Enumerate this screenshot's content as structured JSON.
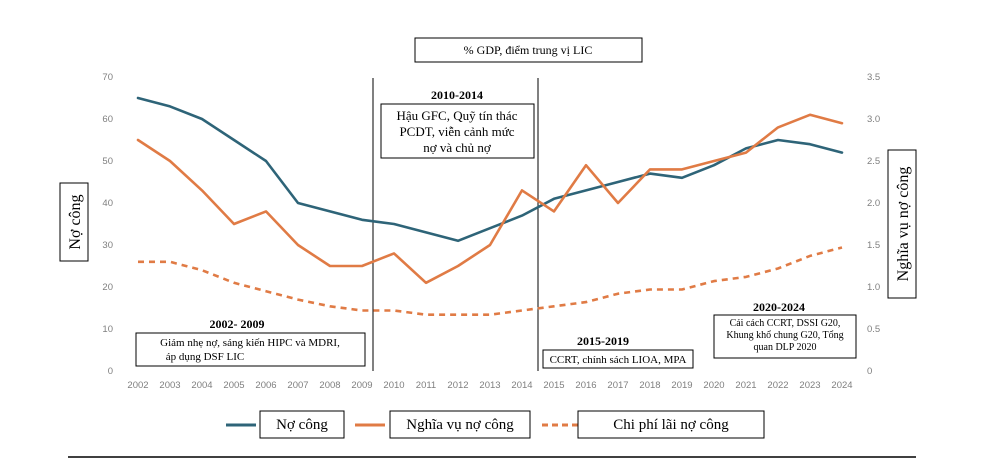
{
  "chart_data": {
    "type": "line",
    "title": "% GDP, điểm trung vị LIC",
    "ylabel": "Nợ công",
    "y2label": "Nghĩa vụ nợ công",
    "xlabel": "",
    "ylim": [
      0,
      70
    ],
    "y2lim": [
      0,
      3.5
    ],
    "grid": false,
    "categories": [
      "2002",
      "2003",
      "2004",
      "2005",
      "2006",
      "2007",
      "2008",
      "2009",
      "2010",
      "2011",
      "2012",
      "2013",
      "2014",
      "2015",
      "2016",
      "2017",
      "2018",
      "2019",
      "2020",
      "2021",
      "2022",
      "2023",
      "2024"
    ],
    "yticks": [
      "0",
      "10",
      "20",
      "30",
      "40",
      "50",
      "60",
      "70"
    ],
    "y2ticks": [
      "0",
      "0.5",
      "1.0",
      "1.5",
      "2.0",
      "2.5",
      "3.0",
      "3.5"
    ],
    "series": [
      {
        "name": "Nợ công",
        "axis": "left",
        "style": "solid",
        "color": "#2e6478",
        "values": [
          65,
          63,
          60,
          55,
          50,
          40,
          38,
          36,
          35,
          33,
          31,
          34,
          37,
          41,
          43,
          45,
          47,
          46,
          49,
          53,
          55,
          54,
          52
        ]
      },
      {
        "name": "Nghĩa vụ nợ công",
        "axis": "right",
        "style": "solid",
        "color": "#e07b45",
        "values": [
          2.75,
          2.5,
          2.15,
          1.75,
          1.9,
          1.5,
          1.25,
          1.25,
          1.4,
          1.05,
          1.25,
          1.5,
          2.15,
          1.9,
          2.45,
          2.0,
          2.4,
          2.4,
          2.5,
          2.6,
          2.9,
          3.05,
          2.95
        ]
      },
      {
        "name": "Chi phí lãi nợ công",
        "axis": "right",
        "style": "dashed",
        "color": "#e07b45",
        "values": [
          1.3,
          1.3,
          1.2,
          1.05,
          0.95,
          0.85,
          0.77,
          0.72,
          0.72,
          0.67,
          0.67,
          0.67,
          0.72,
          0.77,
          0.82,
          0.92,
          0.97,
          0.97,
          1.07,
          1.12,
          1.22,
          1.37,
          1.47
        ]
      }
    ],
    "periods": [
      {
        "heading": "2002- 2009",
        "text": [
          "Giảm nhẹ nợ, sáng kiến HIPC và MDRI,",
          "áp dụng DSF LIC"
        ]
      },
      {
        "heading": "2010-2014",
        "text": [
          "Hậu GFC, Quỹ tín thác",
          "PCDT, viễn cảnh mức",
          "nợ và chủ nợ"
        ]
      },
      {
        "heading": "2015-2019",
        "text": [
          "CCRT, chính sách LIOA, MPA"
        ]
      },
      {
        "heading": "2020-2024",
        "text": [
          "Cải cách CCRT, DSSI G20,",
          "Khung khổ chung G20, Tổng",
          "quan DLP 2020"
        ]
      }
    ],
    "legend_position": "bottom"
  }
}
